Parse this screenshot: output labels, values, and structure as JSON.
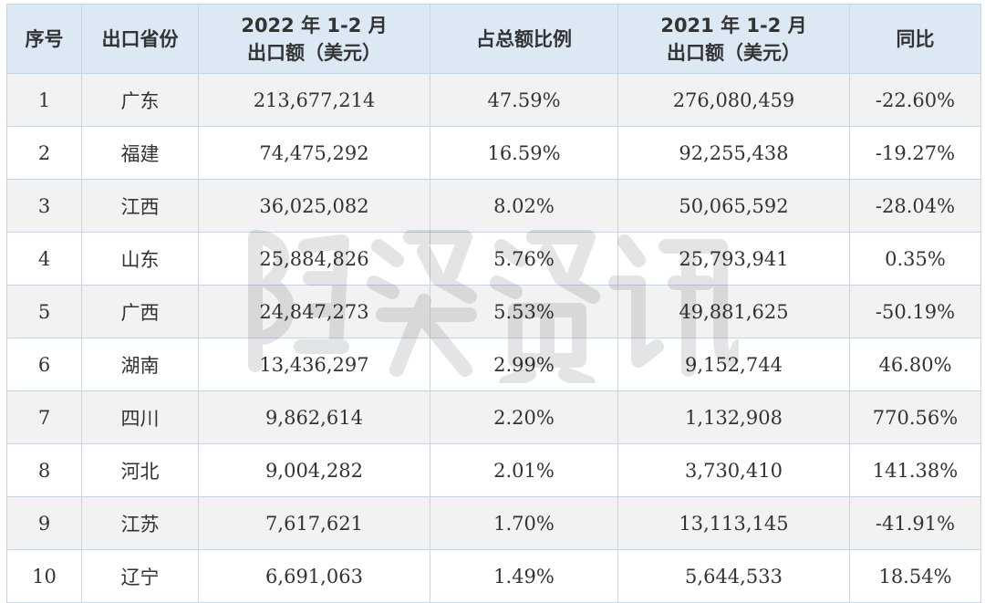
{
  "headers": {
    "no": "序号",
    "province": "出口省份",
    "exp2022_line1": "2022 年 1-2 月",
    "exp2022_line2": "出口额（美元）",
    "share": "占总额比例",
    "exp2021_line1": "2021 年 1-2 月",
    "exp2021_line2": "出口额（美元）",
    "yoy": "同比"
  },
  "rows": [
    {
      "no": "1",
      "province": "广东",
      "exp2022": "213,677,214",
      "share": "47.59%",
      "exp2021": "276,080,459",
      "yoy": "-22.60%"
    },
    {
      "no": "2",
      "province": "福建",
      "exp2022": "74,475,292",
      "share": "16.59%",
      "exp2021": "92,255,438",
      "yoy": "-19.27%"
    },
    {
      "no": "3",
      "province": "江西",
      "exp2022": "36,025,082",
      "share": "8.02%",
      "exp2021": "50,065,592",
      "yoy": "-28.04%"
    },
    {
      "no": "4",
      "province": "山东",
      "exp2022": "25,884,826",
      "share": "5.76%",
      "exp2021": "25,793,941",
      "yoy": "0.35%"
    },
    {
      "no": "5",
      "province": "广西",
      "exp2022": "24,847,273",
      "share": "5.53%",
      "exp2021": "49,881,625",
      "yoy": "-50.19%"
    },
    {
      "no": "6",
      "province": "湖南",
      "exp2022": "13,436,297",
      "share": "2.99%",
      "exp2021": "9,152,744",
      "yoy": "46.80%"
    },
    {
      "no": "7",
      "province": "四川",
      "exp2022": "9,862,614",
      "share": "2.20%",
      "exp2021": "1,132,908",
      "yoy": "770.56%"
    },
    {
      "no": "8",
      "province": "河北",
      "exp2022": "9,004,282",
      "share": "2.01%",
      "exp2021": "3,730,410",
      "yoy": "141.38%"
    },
    {
      "no": "9",
      "province": "江苏",
      "exp2022": "7,617,621",
      "share": "1.70%",
      "exp2021": "13,113,145",
      "yoy": "-41.91%"
    },
    {
      "no": "10",
      "province": "辽宁",
      "exp2022": "6,691,063",
      "share": "1.49%",
      "exp2021": "5,644,533",
      "yoy": "18.54%"
    }
  ],
  "watermark": "陶瓷资讯",
  "colors": {
    "header_bg": "#dce9f5",
    "stripe_bg": "#f2f2f2",
    "border": "#c8d6e4"
  }
}
